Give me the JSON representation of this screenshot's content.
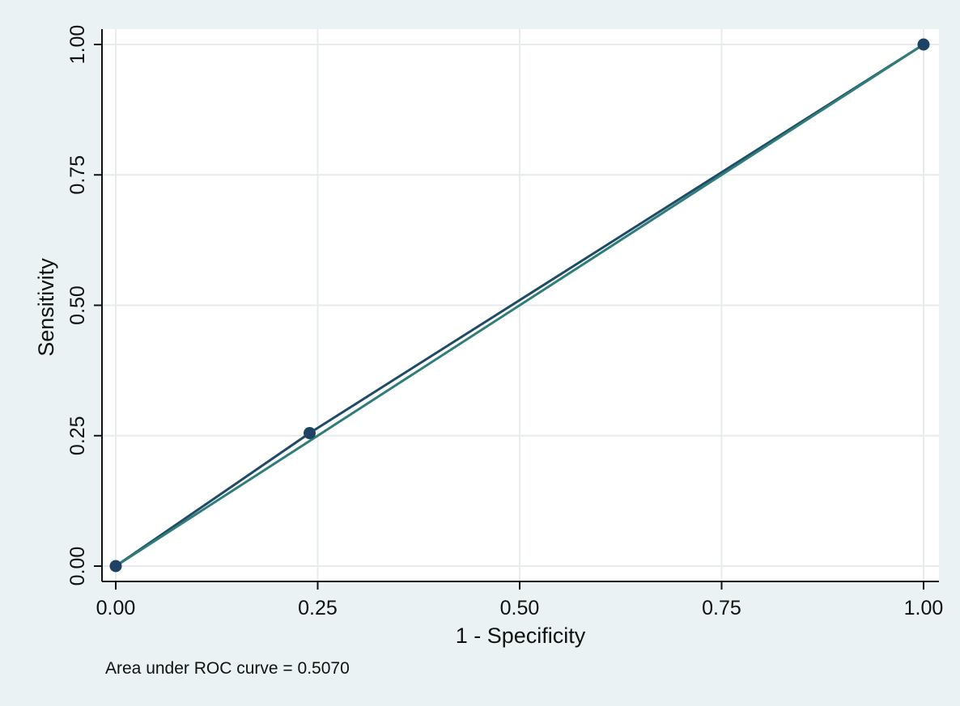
{
  "chart_data": {
    "type": "line",
    "xlabel": "1 - Specificity",
    "ylabel": "Sensitivity",
    "xlim": [
      0,
      1
    ],
    "ylim": [
      0,
      1
    ],
    "x_ticks": [
      "0.00",
      "0.25",
      "0.50",
      "0.75",
      "1.00"
    ],
    "y_ticks": [
      "0.00",
      "0.25",
      "0.50",
      "0.75",
      "1.00"
    ],
    "grid": true,
    "note": "Area under ROC curve = 0.5070",
    "series": [
      {
        "role": "roc-curve",
        "points": [
          {
            "x": 0.0,
            "y": 0.0
          },
          {
            "x": 0.24,
            "y": 0.255
          },
          {
            "x": 1.0,
            "y": 1.0
          }
        ],
        "markers": true
      },
      {
        "role": "reference-line",
        "points": [
          {
            "x": 0.0,
            "y": 0.0
          },
          {
            "x": 1.0,
            "y": 1.0
          }
        ],
        "markers": false
      }
    ],
    "colors": {
      "background": "#eaf2f3",
      "plot_area": "#ffffff",
      "grid": "#e6ecee",
      "roc_line": "#1f4a68",
      "reference_line": "#2f7d78",
      "marker": "#1d4263",
      "axis": "#111111"
    }
  }
}
